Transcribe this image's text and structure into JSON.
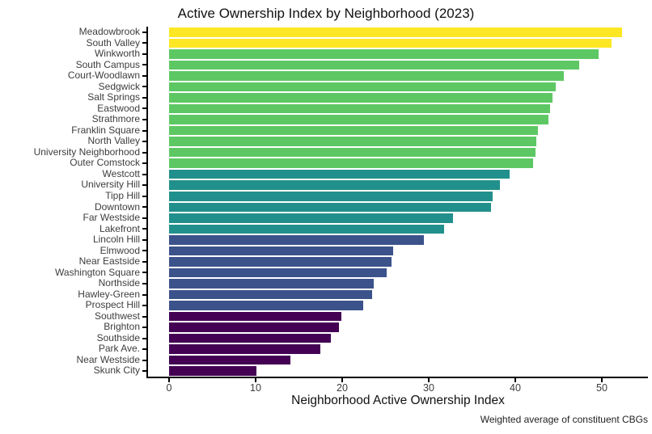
{
  "chart_data": {
    "type": "bar",
    "orientation": "horizontal",
    "title": "Active Ownership Index by Neighborhood (2023)",
    "xlabel": "Neighborhood Active Ownership Index",
    "caption": "Weighted average of constituent CBGs",
    "xlim": [
      0,
      55
    ],
    "xticks": [
      0,
      10,
      20,
      30,
      40,
      50
    ],
    "grid": "off",
    "legend": "none",
    "palette": {
      "bin_50_plus": "#FDE725",
      "bin_40_50": "#5DC863",
      "bin_30_40": "#21908C",
      "bin_20_30": "#3B528B",
      "bin_0_20": "#440154"
    },
    "categories": [
      "Meadowbrook",
      "South Valley",
      "Winkworth",
      "South Campus",
      "Court-Woodlawn",
      "Sedgwick",
      "Salt Springs",
      "Eastwood",
      "Strathmore",
      "Franklin Square",
      "North Valley",
      "University Neighborhood",
      "Outer Comstock",
      "Westcott",
      "University Hill",
      "Tipp Hill",
      "Downtown",
      "Far Westside",
      "Lakefront",
      "Lincoln Hill",
      "Elmwood",
      "Near Eastside",
      "Washington Square",
      "Northside",
      "Hawley-Green",
      "Prospect Hill",
      "Southwest",
      "Brighton",
      "Southside",
      "Park Ave.",
      "Near Westside",
      "Skunk City"
    ],
    "values": [
      52.3,
      51.1,
      49.6,
      47.4,
      45.6,
      44.7,
      44.3,
      44.0,
      43.8,
      42.6,
      42.4,
      42.3,
      42.1,
      39.3,
      38.2,
      37.4,
      37.2,
      32.8,
      31.8,
      29.4,
      25.9,
      25.7,
      25.1,
      23.6,
      23.5,
      22.4,
      19.9,
      19.6,
      18.7,
      17.5,
      14.0,
      10.1
    ],
    "bar_colors": [
      "#FDE725",
      "#FDE725",
      "#5DC863",
      "#5DC863",
      "#5DC863",
      "#5DC863",
      "#5DC863",
      "#5DC863",
      "#5DC863",
      "#5DC863",
      "#5DC863",
      "#5DC863",
      "#5DC863",
      "#21908C",
      "#21908C",
      "#21908C",
      "#21908C",
      "#21908C",
      "#21908C",
      "#3B528B",
      "#3B528B",
      "#3B528B",
      "#3B528B",
      "#3B528B",
      "#3B528B",
      "#3B528B",
      "#440154",
      "#440154",
      "#440154",
      "#440154",
      "#440154",
      "#440154"
    ]
  }
}
